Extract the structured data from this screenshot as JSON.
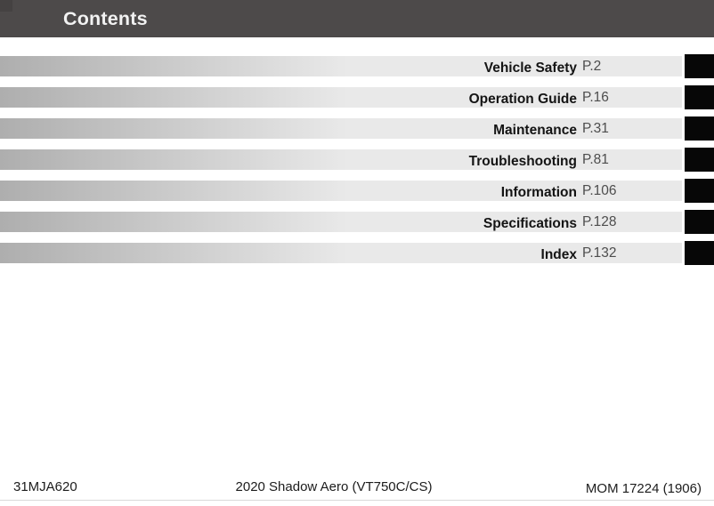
{
  "header": {
    "title": "Contents"
  },
  "toc": {
    "items": [
      {
        "label": "Vehicle Safety",
        "page": "P.2"
      },
      {
        "label": "Operation Guide",
        "page": "P.16"
      },
      {
        "label": "Maintenance",
        "page": "P.31"
      },
      {
        "label": "Troubleshooting",
        "page": "P.81"
      },
      {
        "label": "Information",
        "page": "P.106"
      },
      {
        "label": "Specifications",
        "page": "P.128"
      },
      {
        "label": "Index",
        "page": "P.132"
      }
    ]
  },
  "footer": {
    "left": "31MJA620",
    "center": "2020 Shadow Aero (VT750C/CS)",
    "right": "MOM 17224 (1906)"
  },
  "colors": {
    "header_bg": "#4d4a4a",
    "header_corner": "#454242",
    "header_text": "#f2f2f2",
    "bar_start": "#aeaeae",
    "bar_end": "#e9e9e9",
    "tab_color": "#070707",
    "label_text": "#141414",
    "page_text": "#4d4d4d",
    "footer_text": "#1c1c1c",
    "divider": "#d9d9d9"
  }
}
